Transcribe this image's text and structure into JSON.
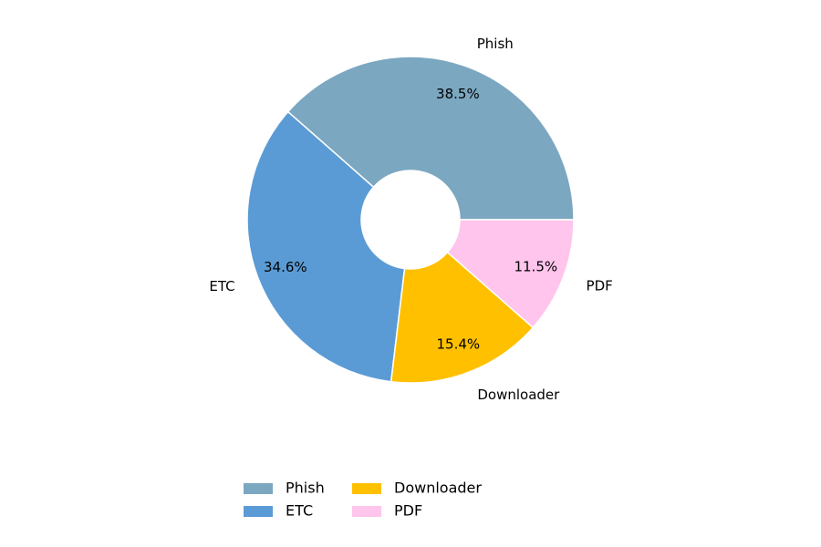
{
  "chart_data": {
    "type": "pie",
    "donut": true,
    "categories": [
      "Phish",
      "ETC",
      "Downloader",
      "PDF"
    ],
    "values": [
      38.5,
      34.6,
      15.4,
      11.5
    ],
    "value_labels": [
      "38.5%",
      "34.6%",
      "15.4%",
      "11.5%"
    ],
    "colors": [
      "#7ba7c0",
      "#5b9bd5",
      "#ffc000",
      "#ffc5ec"
    ],
    "legend": "bottom"
  }
}
